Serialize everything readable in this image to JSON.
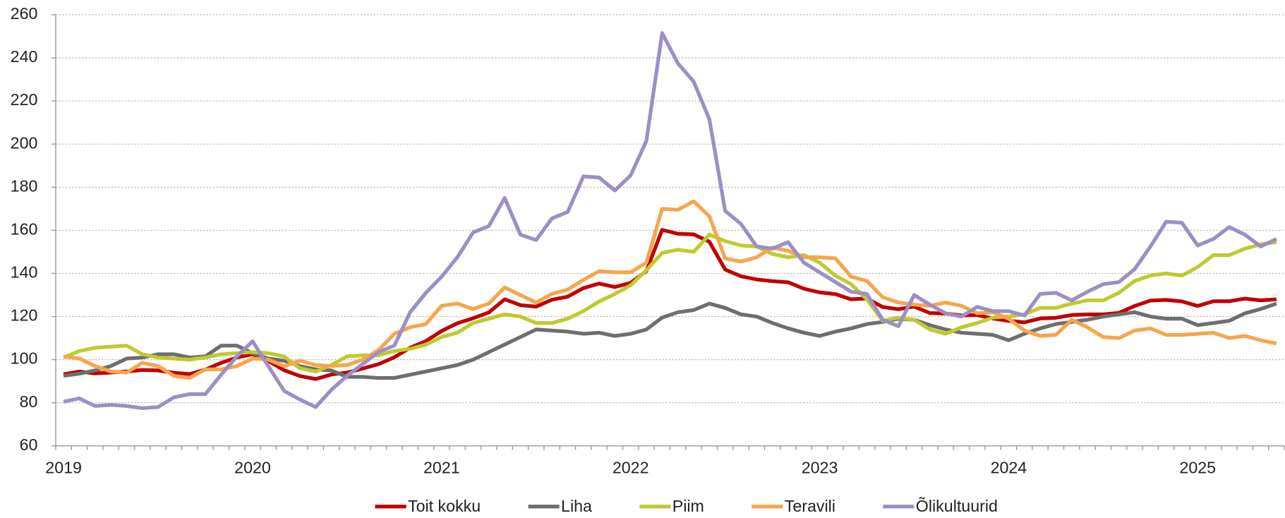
{
  "chart_data": {
    "type": "line",
    "categories": [
      "2019",
      null,
      null,
      null,
      null,
      null,
      null,
      null,
      null,
      null,
      null,
      null,
      "2020",
      null,
      null,
      null,
      null,
      null,
      null,
      null,
      null,
      null,
      null,
      null,
      "2021",
      null,
      null,
      null,
      null,
      null,
      null,
      null,
      null,
      null,
      null,
      null,
      "2022",
      null,
      null,
      null,
      null,
      null,
      null,
      null,
      null,
      null,
      null,
      null,
      "2023",
      null,
      null,
      null,
      null,
      null,
      null,
      null,
      null,
      null,
      null,
      null,
      "2024",
      null,
      null,
      null,
      null,
      null,
      null,
      null,
      null,
      null,
      null,
      null,
      "2025",
      null,
      null,
      null,
      null,
      null
    ],
    "ylim": [
      60,
      260
    ],
    "yticks": [
      60,
      80,
      100,
      120,
      140,
      160,
      180,
      200,
      220,
      240,
      260
    ],
    "grid": true,
    "legend": "bottom",
    "series": [
      {
        "name": "Toit kokku",
        "color": "#c00000",
        "values": [
          93.2,
          94.5,
          93.6,
          94.0,
          94.5,
          95.2,
          95.0,
          93.9,
          93.3,
          95.4,
          98.5,
          101.0,
          102.5,
          99.4,
          95.1,
          92.4,
          91.0,
          93.1,
          94.0,
          95.9,
          97.9,
          101.1,
          105.5,
          108.6,
          113.3,
          116.9,
          119.2,
          121.9,
          128.0,
          125.3,
          124.6,
          127.8,
          129.2,
          133.2,
          135.3,
          133.7,
          135.6,
          141.1,
          160.2,
          158.4,
          158.1,
          154.7,
          141.8,
          138.7,
          137.2,
          136.4,
          135.9,
          132.9,
          131.2,
          130.4,
          128.0,
          128.4,
          124.4,
          123.4,
          124.6,
          121.6,
          121.4,
          120.5,
          120.7,
          119.1,
          118.0,
          117.3,
          119.1,
          119.4,
          120.7,
          121.0,
          121.0,
          121.7,
          124.9,
          127.4,
          127.7,
          127.0,
          124.9,
          127.1,
          127.1,
          128.3,
          127.5,
          128.0
        ]
      },
      {
        "name": "Liha",
        "color": "#6e6e6e",
        "values": [
          92.5,
          93.5,
          95,
          97,
          100.5,
          101,
          102.5,
          102.5,
          101,
          101.5,
          106.5,
          106.5,
          103,
          100.5,
          99.5,
          97,
          95.5,
          95,
          92,
          92,
          91.5,
          91.5,
          93,
          94.5,
          96,
          97.5,
          100,
          103.5,
          107,
          110.5,
          114,
          113.5,
          113,
          112,
          112.5,
          111,
          112,
          114,
          119.5,
          122,
          123,
          126,
          124,
          121,
          120,
          117,
          114.5,
          112.5,
          111,
          113,
          114.5,
          116.5,
          117.5,
          119,
          118.5,
          116,
          114,
          112.5,
          112,
          111.5,
          109,
          112,
          114.5,
          116.5,
          117.5,
          118.5,
          120,
          121,
          122,
          120,
          119,
          119,
          116,
          117,
          118,
          121.5,
          123.5,
          126
        ]
      },
      {
        "name": "Piim",
        "color": "#bfca2f",
        "values": [
          101,
          104,
          105.5,
          106,
          106.5,
          102.5,
          101,
          100.5,
          100,
          101,
          102.5,
          103,
          103.5,
          103,
          101.5,
          96,
          94.5,
          97.5,
          101.5,
          102,
          102,
          104,
          105,
          107,
          110.5,
          112.5,
          117,
          119,
          121,
          120,
          117,
          117,
          119,
          122.5,
          127,
          130.5,
          134.5,
          141.5,
          149.5,
          151,
          150,
          158,
          155,
          153,
          152.5,
          149,
          147.5,
          148.5,
          145,
          139,
          135,
          128,
          118,
          119.5,
          118.5,
          114,
          112,
          115,
          117,
          119.5,
          120,
          121,
          124,
          124,
          126,
          127.5,
          127.5,
          131,
          136.5,
          139,
          140,
          139,
          143,
          148.5,
          148.5,
          151.5,
          153.5,
          154.5
        ]
      },
      {
        "name": "Teravili",
        "color": "#f7a54b",
        "values": [
          101.5,
          100.5,
          97,
          94.5,
          94,
          98.5,
          97,
          92.5,
          91.5,
          95.5,
          95.5,
          97,
          100.5,
          100,
          97,
          99.5,
          97.5,
          97,
          97.5,
          100,
          104.5,
          112,
          115,
          116.5,
          125,
          126,
          123.5,
          126,
          133.5,
          130,
          126.5,
          130.5,
          132.5,
          137,
          141,
          140.5,
          140.5,
          145,
          170,
          169.5,
          173.5,
          166.5,
          147,
          145.5,
          147.5,
          152,
          150.5,
          147.5,
          147.5,
          147,
          138.5,
          136.5,
          129,
          126.5,
          125.5,
          125,
          126.5,
          125,
          121.5,
          122,
          119,
          113.5,
          111,
          111.5,
          118.5,
          115,
          110.5,
          110,
          113.5,
          114.5,
          111.5,
          111.5,
          112,
          112.5,
          110,
          111,
          109,
          107.5
        ]
      },
      {
        "name": "Õlikultuurid",
        "color": "#9d8ec6",
        "values": [
          80.5,
          82,
          78.5,
          79,
          78.5,
          77.5,
          78,
          82.5,
          84,
          84,
          93,
          101.5,
          108.5,
          97,
          85.5,
          81.5,
          78,
          86,
          92.5,
          98,
          103.5,
          106.5,
          122,
          131,
          138.5,
          147.5,
          159,
          162,
          175,
          158,
          155.5,
          165.5,
          168.5,
          185,
          184.5,
          178.5,
          185.5,
          201.5,
          251.5,
          237.5,
          229,
          211.5,
          169,
          163,
          152.5,
          151.5,
          154.5,
          145,
          140.5,
          136,
          131.5,
          130.5,
          118.5,
          115.5,
          130,
          125.5,
          121.5,
          120,
          124.5,
          122.5,
          122.5,
          120.5,
          130.5,
          131,
          127.5,
          131.5,
          135,
          136,
          142,
          152.5,
          164,
          163.5,
          153,
          156,
          161.5,
          158,
          152.5,
          156
        ]
      }
    ]
  }
}
